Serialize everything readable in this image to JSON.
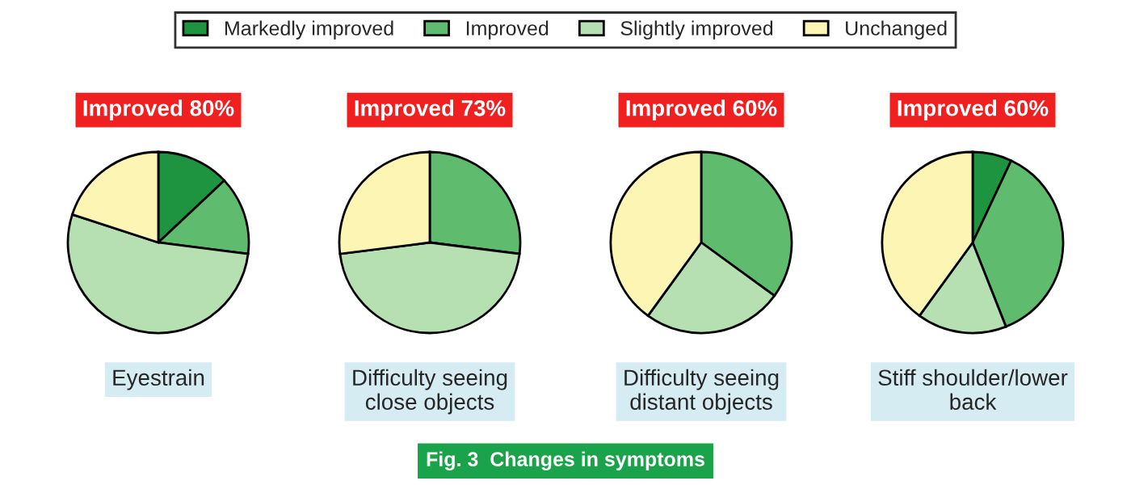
{
  "chart_data": [
    {
      "type": "pie",
      "title": "Improved 80%",
      "xlabel": "Eyestrain",
      "categories": [
        "Markedly improved",
        "Improved",
        "Slightly improved",
        "Unchanged"
      ],
      "values": [
        13,
        14,
        53,
        20
      ],
      "colors": [
        "#1e9440",
        "#5fbb6e",
        "#b6e0b2",
        "#fdf5b4"
      ],
      "legend": "top",
      "annotations": [
        "Fig. 3  Changes in symptoms"
      ]
    },
    {
      "type": "pie",
      "title": "Improved 73%",
      "xlabel": "Difficulty seeing\nclose objects",
      "categories": [
        null,
        null,
        null,
        null
      ],
      "values": [
        0,
        27,
        46,
        27
      ],
      "colors": [
        "#1e9440",
        "#5fbb6e",
        "#b6e0b2",
        "#fdf5b4"
      ]
    },
    {
      "type": "pie",
      "title": "Improved 60%",
      "xlabel": "Difficulty seeing\ndistant objects",
      "categories": [
        null,
        null,
        null,
        null
      ],
      "values": [
        0,
        35,
        25,
        40
      ],
      "colors": [
        "#1e9440",
        "#5fbb6e",
        "#b6e0b2",
        "#fdf5b4"
      ]
    },
    {
      "type": "pie",
      "title": "Improved 60%",
      "xlabel": "Stiff shoulder/lower\nback",
      "categories": [
        null,
        null,
        null,
        null
      ],
      "values": [
        7,
        37,
        16,
        40
      ],
      "colors": [
        "#1e9440",
        "#5fbb6e",
        "#b6e0b2",
        "#fdf5b4"
      ]
    }
  ]
}
